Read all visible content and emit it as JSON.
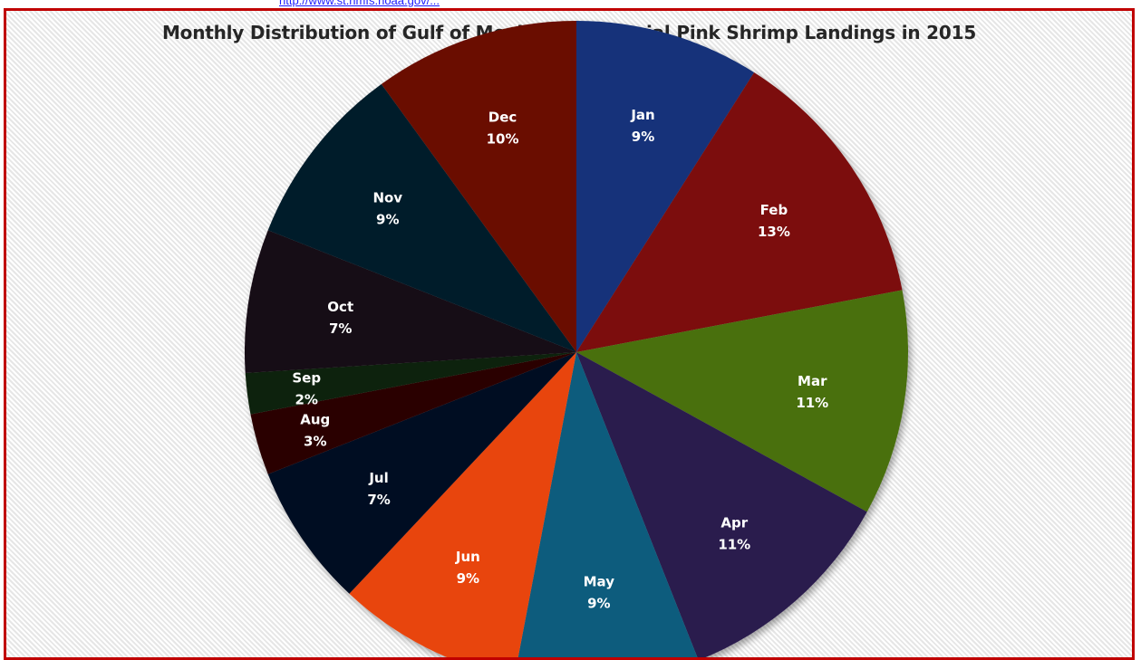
{
  "link": {
    "text": "http://www.st.nmfs.noaa.gov/..."
  },
  "chart_data": {
    "type": "pie",
    "title": "Monthly Distribution of Gulf of Mexico Commercial Pink Shrimp Landings in 2015",
    "categories": [
      "Jan",
      "Feb",
      "Mar",
      "Apr",
      "May",
      "Jun",
      "Jul",
      "Aug",
      "Sep",
      "Oct",
      "Nov",
      "Dec"
    ],
    "values": [
      9,
      13,
      11,
      11,
      9,
      9,
      7,
      3,
      2,
      7,
      9,
      10
    ],
    "labels": [
      "9%",
      "13%",
      "11%",
      "11%",
      "9%",
      "9%",
      "7%",
      "3%",
      "2%",
      "7%",
      "9%",
      "10%"
    ],
    "colors": [
      "#12317a",
      "#7b0d0d",
      "#4a7010",
      "#2c1c4d",
      "#0e5c7d",
      "#e8440e",
      "#060d22",
      "#2a0404",
      "#10200a",
      "#140712",
      "#041f2c",
      "#6a1003"
    ],
    "start_angle": "top, clockwise",
    "legend": "none"
  }
}
